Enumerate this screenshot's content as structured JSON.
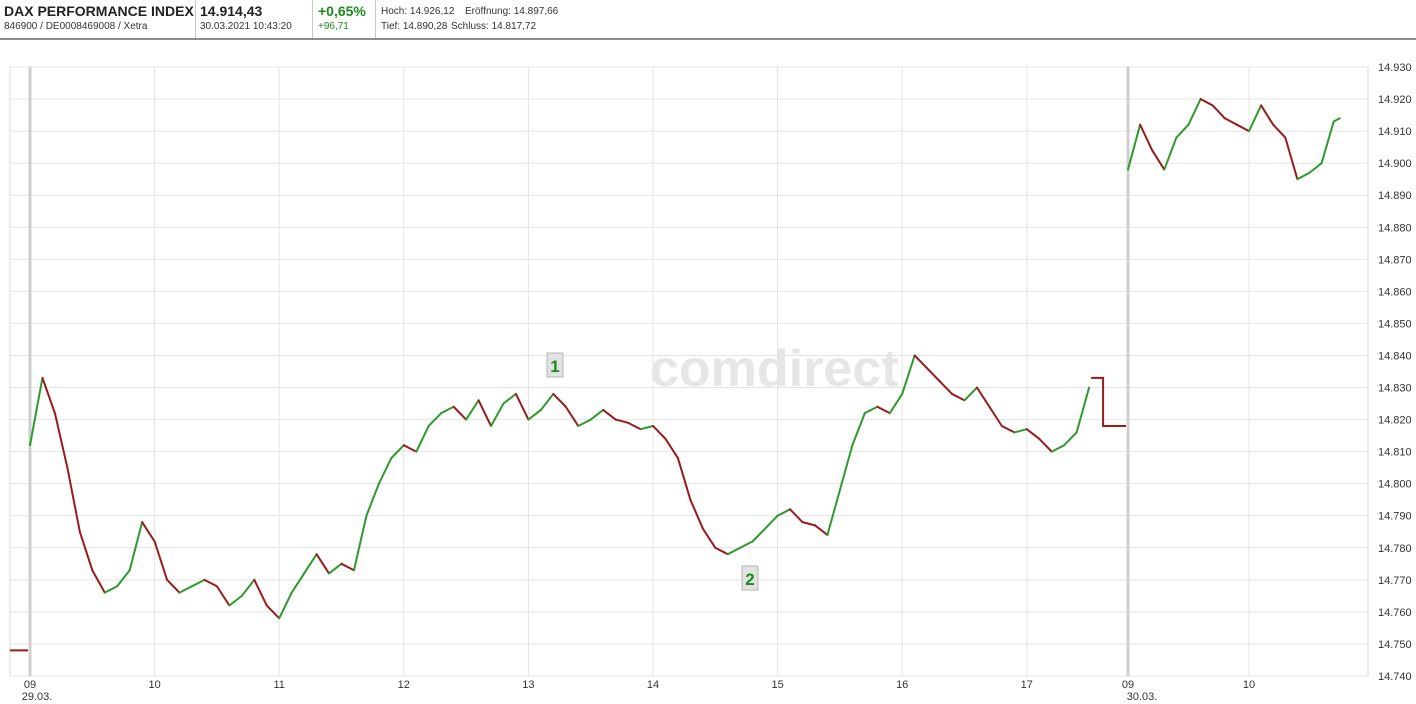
{
  "header": {
    "name": "DAX PERFORMANCE INDEX",
    "ids": "846900 / DE0008469008 / Xetra",
    "price": "14.914,43",
    "datetime": "30.03.2021 10:43:20",
    "change_pct": "+0,65%",
    "change_abs": "+96,71",
    "high": "Hoch: 14.926,12",
    "open": "Eröffnung: 14.897,66",
    "low": "Tief: 14.890,28",
    "close": "Schluss: 14.817,72",
    "positive_color": "#1a8a1a"
  },
  "watermark": "comdirect",
  "markers": [
    "1",
    "2"
  ],
  "chart_data": {
    "type": "line",
    "title": "",
    "xlabel": "",
    "ylabel": "",
    "ylim": [
      14740,
      14930
    ],
    "yticks": [
      "14.740",
      "14.750",
      "14.760",
      "14.770",
      "14.780",
      "14.790",
      "14.800",
      "14.810",
      "14.820",
      "14.830",
      "14.840",
      "14.850",
      "14.860",
      "14.870",
      "14.880",
      "14.890",
      "14.900",
      "14.910",
      "14.920",
      "14.930"
    ],
    "xticks": [
      "09",
      "10",
      "11",
      "12",
      "13",
      "14",
      "15",
      "16",
      "17",
      "09",
      "10"
    ],
    "date_labels": [
      "29.03.",
      "30.03."
    ],
    "up_color": "#2e9a2e",
    "down_color": "#9b1b1b",
    "prev_close": 14748,
    "post_close": [
      14833,
      14818
    ],
    "series": [
      {
        "x": [
          9.0,
          9.1,
          9.2,
          9.3,
          9.4,
          9.5,
          9.6,
          9.7,
          9.8,
          9.9,
          10.0,
          10.1,
          10.2,
          10.3,
          10.4,
          10.5,
          10.6,
          10.7,
          10.8,
          10.9,
          11.0,
          11.1,
          11.2,
          11.3,
          11.4,
          11.5,
          11.6,
          11.7,
          11.8,
          11.9,
          12.0,
          12.1,
          12.2,
          12.3,
          12.4,
          12.5,
          12.6,
          12.7,
          12.8,
          12.9,
          13.0,
          13.1,
          13.2,
          13.3,
          13.4,
          13.5,
          13.6,
          13.7,
          13.8,
          13.9,
          14.0,
          14.1,
          14.2,
          14.3,
          14.4,
          14.5,
          14.6,
          14.7,
          14.8,
          14.9,
          15.0,
          15.1,
          15.2,
          15.3,
          15.4,
          15.5,
          15.6,
          15.7,
          15.8,
          15.9,
          16.0,
          16.1,
          16.2,
          16.3,
          16.4,
          16.5,
          16.6,
          16.7,
          16.8,
          16.9,
          17.0,
          17.1,
          17.2,
          17.3,
          17.4,
          17.5
        ],
        "values": [
          14812,
          14833,
          14822,
          14805,
          14785,
          14773,
          14766,
          14768,
          14773,
          14788,
          14782,
          14770,
          14766,
          14768,
          14770,
          14768,
          14762,
          14765,
          14770,
          14762,
          14758,
          14766,
          14772,
          14778,
          14772,
          14775,
          14773,
          14790,
          14800,
          14808,
          14812,
          14810,
          14818,
          14822,
          14824,
          14820,
          14826,
          14818,
          14825,
          14828,
          14820,
          14823,
          14828,
          14824,
          14818,
          14820,
          14823,
          14820,
          14819,
          14817,
          14818,
          14814,
          14808,
          14795,
          14786,
          14780,
          14778,
          14780,
          14782,
          14786,
          14790,
          14792,
          14788,
          14787,
          14784,
          14798,
          14812,
          14822,
          14824,
          14822,
          14828,
          14840,
          14836,
          14832,
          14828,
          14826,
          14830,
          14824,
          14818,
          14816,
          14817,
          14814,
          14810,
          14812,
          14816,
          14830
        ]
      },
      {
        "x": [
          9.0,
          9.1,
          9.2,
          9.3,
          9.4,
          9.5,
          9.6,
          9.7,
          9.8,
          9.9,
          10.0,
          10.1,
          10.2,
          10.3,
          10.4,
          10.5,
          10.6,
          10.7,
          10.75
        ],
        "values": [
          14898,
          14912,
          14904,
          14898,
          14908,
          14912,
          14920,
          14918,
          14914,
          14912,
          14910,
          14918,
          14912,
          14908,
          14895,
          14897,
          14900,
          14913,
          14914
        ]
      }
    ]
  }
}
